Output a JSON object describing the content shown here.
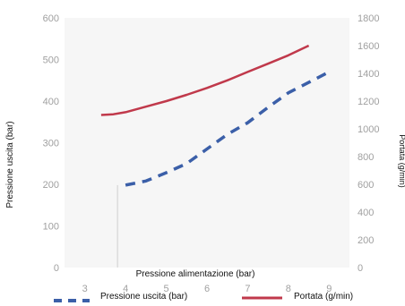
{
  "chart_data": {
    "type": "line",
    "xlabel": "Pressione alimentazione (bar)",
    "ylabel_left": "Pressione uscita (bar)",
    "ylabel_right": "Portata (g/min)",
    "xlim": [
      2.5,
      9.5
    ],
    "x_ticks": [
      3,
      4,
      5,
      6,
      7,
      8,
      9
    ],
    "ylim_left": [
      0,
      600
    ],
    "y_ticks_left": [
      0,
      100,
      200,
      300,
      400,
      500,
      600
    ],
    "ylim_right": [
      0,
      1800
    ],
    "y_ticks_right": [
      0,
      200,
      400,
      600,
      800,
      1000,
      1200,
      1400,
      1600,
      1800
    ],
    "grid": false,
    "legend": "bottom",
    "series": [
      {
        "name": "Pressione uscita (bar)",
        "axis": "left",
        "style": "dashed",
        "color": "#3b5fa8",
        "x": [
          4,
          4.5,
          5,
          5.5,
          6,
          6.5,
          7,
          7.5,
          8,
          8.5,
          9
        ],
        "y": [
          198,
          208,
          228,
          250,
          285,
          320,
          348,
          385,
          420,
          445,
          470
        ]
      },
      {
        "name": "Portata (g/min)",
        "axis": "right",
        "style": "solid",
        "color": "#c0394b",
        "x": [
          3.4,
          3.7,
          4,
          4.5,
          5,
          5.5,
          6,
          6.5,
          7,
          7.5,
          8,
          8.5
        ],
        "y": [
          1100,
          1105,
          1120,
          1160,
          1200,
          1245,
          1295,
          1350,
          1410,
          1470,
          1530,
          1600
        ]
      }
    ]
  }
}
